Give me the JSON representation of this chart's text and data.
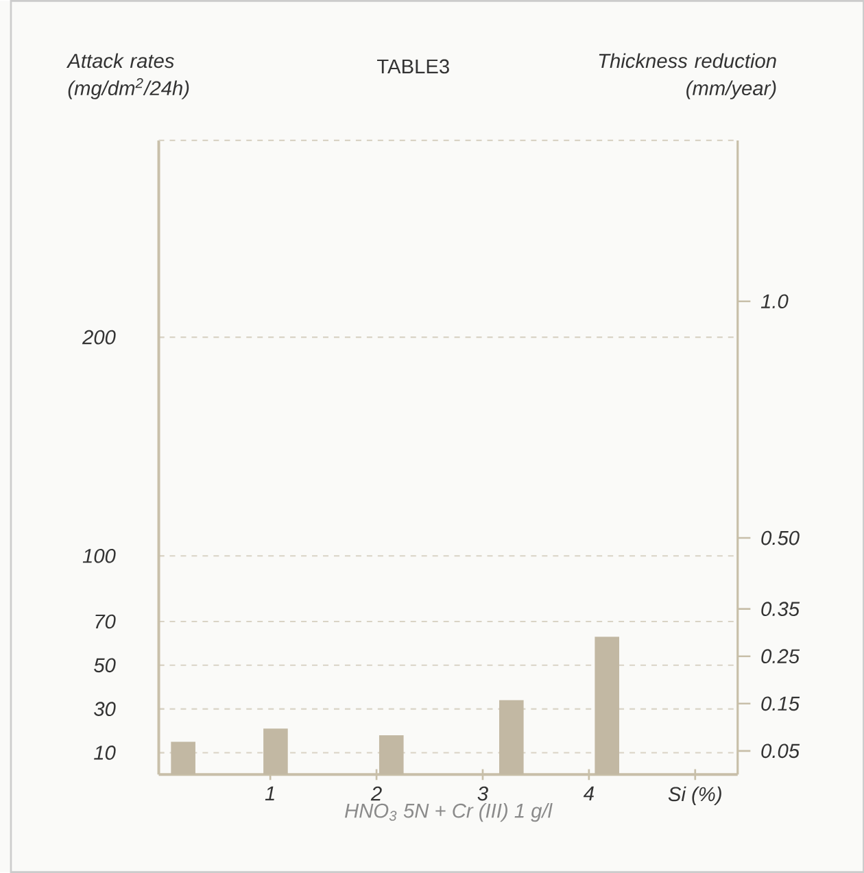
{
  "chart_data": {
    "type": "bar",
    "title": "TABLE3",
    "ylabel": "Attack rates (mg/dm$^{2}$/24h)",
    "y2label": "Thickness reduction (mm/year)",
    "xlabel": "HNO$_{3}$ 5N + Cr (III) 1 g/l",
    "x": [
      0.18,
      1.05,
      2.14,
      3.27,
      4.17
    ],
    "values": [
      15,
      21,
      18,
      34,
      63
    ],
    "color": "#c2b8a3",
    "xlim": [
      -0.05,
      5.4
    ],
    "xticks": [
      1,
      2,
      3,
      4,
      {
        "value": 5,
        "label": "Si (%)"
      }
    ],
    "ylim": [
      0,
      290
    ],
    "yticks": [
      10,
      30,
      50,
      70,
      100,
      200
    ],
    "y2lim": [
      0,
      1.34
    ],
    "y2ticks": [
      0.05,
      0.15,
      0.25,
      0.35,
      {
        "value": 0.5,
        "label": "0.50"
      },
      {
        "value": 1,
        "label": "1.0"
      }
    ],
    "grid": "y"
  }
}
